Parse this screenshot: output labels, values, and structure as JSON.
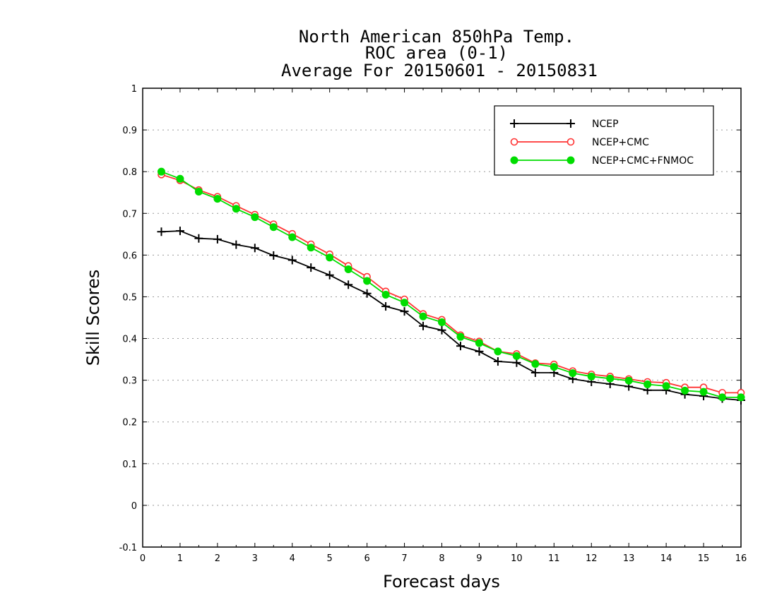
{
  "chart_data": {
    "type": "line",
    "title": [
      "North American 850hPa Temp.",
      "ROC area (0-1)",
      "Average For 20150601 - 20150831"
    ],
    "xlabel": "Forecast days",
    "ylabel": "Skill Scores",
    "xlim": [
      0,
      16
    ],
    "ylim": [
      -0.1,
      1
    ],
    "xticks": [
      0,
      1,
      2,
      3,
      4,
      5,
      6,
      7,
      8,
      9,
      10,
      11,
      12,
      13,
      14,
      15,
      16
    ],
    "yticks": [
      "-0.1",
      "0",
      "0.1",
      "0.2",
      "0.3",
      "0.4",
      "0.5",
      "0.6",
      "0.7",
      "0.8",
      "0.9",
      "1"
    ],
    "grid": "horizontal dotted",
    "legend_position": "top-right",
    "x": [
      0.5,
      1,
      1.5,
      2,
      2.5,
      3,
      3.5,
      4,
      4.5,
      5,
      5.5,
      6,
      6.5,
      7,
      7.5,
      8,
      8.5,
      9,
      9.5,
      10,
      10.5,
      11,
      11.5,
      12,
      12.5,
      13,
      13.5,
      14,
      14.5,
      15,
      15.5,
      16
    ],
    "series": [
      {
        "name": "NCEP",
        "color": "#000000",
        "marker": "plus",
        "values": [
          0.656,
          0.658,
          0.64,
          0.638,
          0.625,
          0.617,
          0.599,
          0.588,
          0.57,
          0.552,
          0.529,
          0.508,
          0.477,
          0.465,
          0.43,
          0.42,
          0.382,
          0.369,
          0.345,
          0.342,
          0.318,
          0.318,
          0.303,
          0.296,
          0.291,
          0.285,
          0.276,
          0.276,
          0.266,
          0.262,
          0.256,
          0.252
        ]
      },
      {
        "name": "NCEP+CMC",
        "color": "#ff3333",
        "marker": "open-circle",
        "values": [
          0.793,
          0.779,
          0.756,
          0.74,
          0.718,
          0.697,
          0.674,
          0.651,
          0.626,
          0.602,
          0.574,
          0.548,
          0.513,
          0.494,
          0.459,
          0.445,
          0.408,
          0.393,
          0.369,
          0.363,
          0.341,
          0.338,
          0.322,
          0.314,
          0.309,
          0.303,
          0.296,
          0.294,
          0.283,
          0.283,
          0.27,
          0.27
        ]
      },
      {
        "name": "NCEP+CMC+FNMOC",
        "color": "#00dd00",
        "marker": "filled-circle",
        "values": [
          0.8,
          0.783,
          0.752,
          0.735,
          0.711,
          0.691,
          0.667,
          0.643,
          0.618,
          0.594,
          0.566,
          0.538,
          0.505,
          0.486,
          0.453,
          0.439,
          0.404,
          0.389,
          0.369,
          0.358,
          0.339,
          0.332,
          0.317,
          0.309,
          0.304,
          0.299,
          0.29,
          0.286,
          0.275,
          0.272,
          0.259,
          0.259
        ]
      }
    ]
  }
}
